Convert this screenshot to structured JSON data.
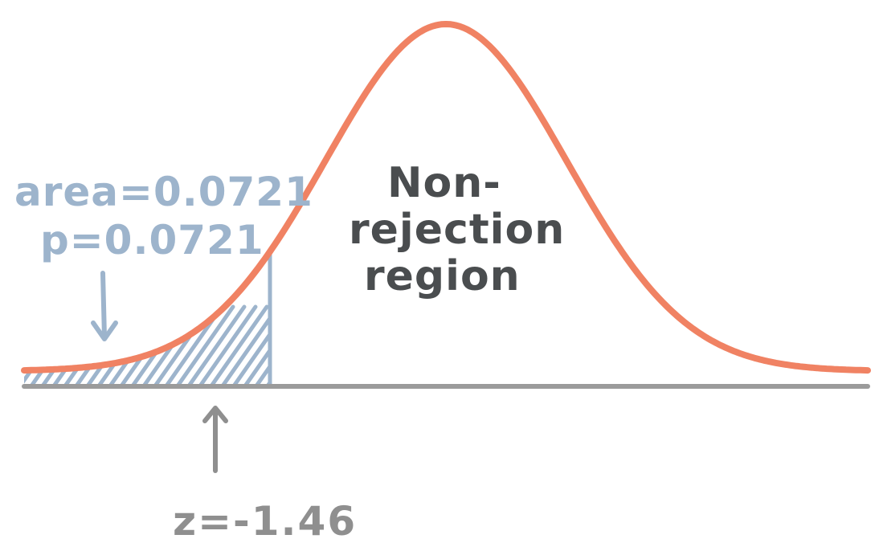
{
  "colors": {
    "curve": "#F08263",
    "axis": "#9B9B9B",
    "shade": "#9DB4CC",
    "annotation": "#9DB4CC",
    "z_label": "#8F8F8F",
    "region_text": "#4A4D4F"
  },
  "annotations": {
    "area_label": "area=0.0721",
    "p_label": "p=0.0721",
    "z_label": "z=-1.46",
    "region_label": [
      "Non-",
      "rejection",
      "region"
    ]
  },
  "distribution": {
    "type": "standard-normal",
    "z_critical": -1.46,
    "tail": "left",
    "tail_area": 0.0721
  }
}
